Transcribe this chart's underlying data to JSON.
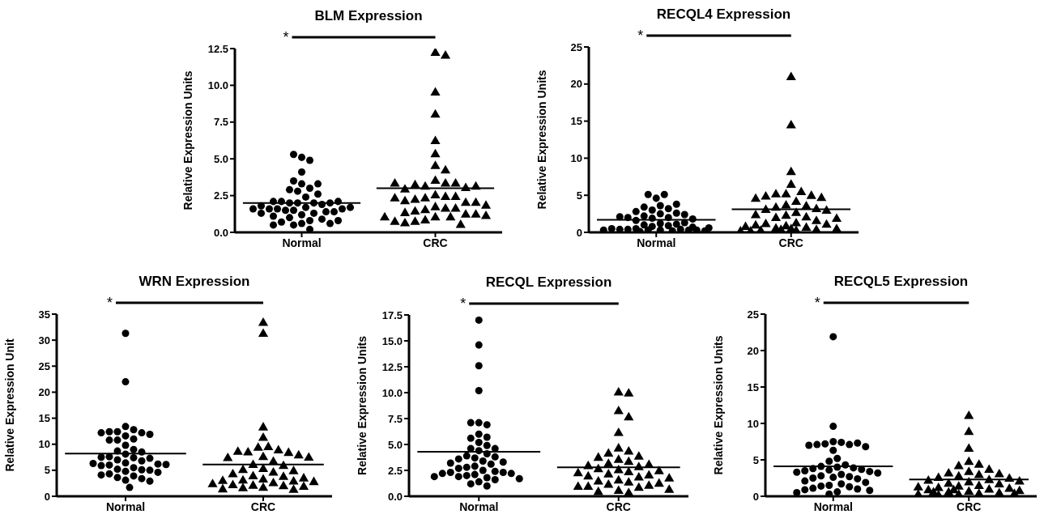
{
  "chart_data": [
    {
      "type": "scatter",
      "title": "BLM Expression",
      "ylabel": "Relative Expression Units",
      "categories": [
        "Normal",
        "CRC"
      ],
      "ylim": [
        0,
        12.5
      ],
      "yticks": [
        {
          "value": 0,
          "label": "0.0"
        },
        2.5,
        {
          "value": 5,
          "label": "5.0"
        },
        7.5,
        {
          "value": 10,
          "label": "10.0"
        },
        12.5
      ],
      "annotations": [
        "*"
      ],
      "series": [
        {
          "type": "scatter",
          "marker": "circle",
          "color": "#000000",
          "x": [
            "Normal",
            "Normal",
            "Normal",
            "Normal",
            "Normal",
            "Normal",
            "Normal",
            "Normal",
            "Normal",
            "Normal",
            "Normal",
            "Normal",
            "Normal",
            "Normal",
            "Normal",
            "Normal",
            "Normal",
            "Normal",
            "Normal",
            "Normal",
            "Normal",
            "Normal",
            "Normal",
            "Normal",
            "Normal",
            "Normal",
            "Normal",
            "Normal",
            "Normal",
            "Normal",
            "Normal",
            "Normal",
            "Normal",
            "Normal",
            "Normal",
            "Normal",
            "Normal",
            "Normal",
            "Normal",
            "Normal",
            "Normal",
            "Normal",
            "Normal",
            "Normal",
            "Normal"
          ],
          "values": [
            5.1,
            4.9,
            5.3,
            4.1,
            3.3,
            3.0,
            2.8,
            3.5,
            2.9,
            3.3,
            2.6,
            2.4,
            2.0,
            2.0,
            2.0,
            1.9,
            2.1,
            2.0,
            2.1,
            2.1,
            1.7,
            1.6,
            1.5,
            1.6,
            1.8,
            1.6,
            1.7,
            1.5,
            1.6,
            1.3,
            1.4,
            1.2,
            1.4,
            1.3,
            1.1,
            1.0,
            0.9,
            0.8,
            0.6,
            0.5,
            0.7,
            0.6,
            0.8,
            0.5,
            0.2
          ]
        },
        {
          "type": "scatter",
          "marker": "triangle",
          "color": "#000000",
          "x": [
            "CRC",
            "CRC",
            "CRC",
            "CRC",
            "CRC",
            "CRC",
            "CRC",
            "CRC",
            "CRC",
            "CRC",
            "CRC",
            "CRC",
            "CRC",
            "CRC",
            "CRC",
            "CRC",
            "CRC",
            "CRC",
            "CRC",
            "CRC",
            "CRC",
            "CRC",
            "CRC",
            "CRC",
            "CRC",
            "CRC",
            "CRC",
            "CRC",
            "CRC",
            "CRC",
            "CRC",
            "CRC",
            "CRC",
            "CRC",
            "CRC",
            "CRC",
            "CRC",
            "CRC",
            "CRC",
            "CRC",
            "CRC",
            "CRC",
            "CRC",
            "CRC"
          ],
          "values": [
            12.2,
            12.0,
            9.5,
            8.0,
            6.2,
            5.3,
            4.5,
            4.2,
            3.5,
            3.3,
            3.1,
            3.3,
            3.2,
            3.0,
            2.9,
            3.1,
            3.3,
            2.5,
            2.4,
            2.3,
            2.4,
            2.2,
            2.0,
            2.1,
            2.0,
            2.3,
            1.7,
            1.6,
            1.8,
            1.5,
            1.6,
            1.4,
            1.2,
            1.3,
            1.2,
            1.0,
            1.0,
            0.8,
            0.7,
            0.5,
            0.6,
            0.7,
            1.1,
            1.0
          ]
        }
      ],
      "ref_lines": [
        {
          "axis": "y",
          "value": 2.0
        },
        {
          "axis": "y",
          "value": 3.0
        }
      ]
    },
    {
      "type": "scatter",
      "title": "RECQL4 Expression",
      "ylabel": "Relative Expression Units",
      "categories": [
        "Normal",
        "CRC"
      ],
      "ylim": [
        0,
        25
      ],
      "yticks": [
        0,
        5,
        10,
        15,
        20,
        25
      ],
      "annotations": [
        "*"
      ],
      "series": [
        {
          "type": "scatter",
          "marker": "circle",
          "color": "#000000",
          "x": [
            "Normal",
            "Normal",
            "Normal",
            "Normal",
            "Normal",
            "Normal",
            "Normal",
            "Normal",
            "Normal",
            "Normal",
            "Normal",
            "Normal",
            "Normal",
            "Normal",
            "Normal",
            "Normal",
            "Normal",
            "Normal",
            "Normal",
            "Normal",
            "Normal",
            "Normal",
            "Normal",
            "Normal",
            "Normal",
            "Normal",
            "Normal",
            "Normal",
            "Normal",
            "Normal",
            "Normal",
            "Normal",
            "Normal",
            "Normal",
            "Normal",
            "Normal",
            "Normal",
            "Normal",
            "Normal",
            "Normal"
          ],
          "values": [
            4.6,
            5.1,
            5.1,
            3.6,
            3.0,
            3.2,
            3.4,
            3.8,
            2.5,
            2.6,
            2.8,
            2.2,
            2.4,
            2.0,
            1.9,
            2.0,
            1.8,
            2.1,
            1.6,
            1.2,
            1.0,
            1.1,
            1.3,
            0.9,
            0.8,
            0.5,
            0.4,
            0.3,
            0.4,
            0.3,
            0.5,
            0.2,
            0.3,
            0.4,
            0.3,
            0.2,
            0.6,
            0.7,
            0.3,
            0.1
          ]
        },
        {
          "type": "scatter",
          "marker": "triangle",
          "color": "#000000",
          "x": [
            "CRC",
            "CRC",
            "CRC",
            "CRC",
            "CRC",
            "CRC",
            "CRC",
            "CRC",
            "CRC",
            "CRC",
            "CRC",
            "CRC",
            "CRC",
            "CRC",
            "CRC",
            "CRC",
            "CRC",
            "CRC",
            "CRC",
            "CRC",
            "CRC",
            "CRC",
            "CRC",
            "CRC",
            "CRC",
            "CRC",
            "CRC",
            "CRC",
            "CRC",
            "CRC",
            "CRC",
            "CRC",
            "CRC",
            "CRC",
            "CRC",
            "CRC",
            "CRC",
            "CRC",
            "CRC",
            "CRC",
            "CRC"
          ],
          "values": [
            20.9,
            14.4,
            8.1,
            6.4,
            5.4,
            5.1,
            5.1,
            4.9,
            4.8,
            4.6,
            4.5,
            4.1,
            3.6,
            3.5,
            3.3,
            3.1,
            3.0,
            2.9,
            2.6,
            2.3,
            2.2,
            2.0,
            1.9,
            1.8,
            1.5,
            1.2,
            1.1,
            1.0,
            0.9,
            0.8,
            0.7,
            0.6,
            0.5,
            0.4,
            0.3,
            0.2,
            0.2,
            0.1,
            0.1,
            0.3,
            0.4
          ]
        }
      ],
      "ref_lines": [
        {
          "axis": "y",
          "value": 1.7
        },
        {
          "axis": "y",
          "value": 3.1
        }
      ]
    },
    {
      "type": "scatter",
      "title": "WRN Expression",
      "ylabel": "Relative Expression Unit",
      "categories": [
        "Normal",
        "CRC"
      ],
      "ylim": [
        0,
        35
      ],
      "yticks": [
        0,
        5,
        10,
        15,
        20,
        25,
        30,
        35
      ],
      "annotations": [
        "*"
      ],
      "series": [
        {
          "type": "scatter",
          "marker": "circle",
          "color": "#000000",
          "x": [
            "Normal",
            "Normal",
            "Normal",
            "Normal",
            "Normal",
            "Normal",
            "Normal",
            "Normal",
            "Normal",
            "Normal",
            "Normal",
            "Normal",
            "Normal",
            "Normal",
            "Normal",
            "Normal",
            "Normal",
            "Normal",
            "Normal",
            "Normal",
            "Normal",
            "Normal",
            "Normal",
            "Normal",
            "Normal",
            "Normal",
            "Normal",
            "Normal",
            "Normal",
            "Normal",
            "Normal",
            "Normal",
            "Normal",
            "Normal",
            "Normal",
            "Normal",
            "Normal",
            "Normal",
            "Normal",
            "Normal",
            "Normal",
            "Normal",
            "Normal",
            "Normal"
          ],
          "values": [
            31.3,
            22.0,
            13.4,
            12.8,
            12.4,
            12.2,
            12.4,
            11.6,
            11.0,
            10.8,
            11.9,
            12.2,
            10.8,
            9.8,
            9.0,
            8.7,
            8.5,
            8.1,
            7.6,
            7.4,
            7.3,
            7.5,
            7.0,
            6.8,
            6.4,
            6.2,
            6.3,
            6.0,
            6.1,
            5.9,
            5.5,
            5.2,
            5.1,
            5.0,
            4.8,
            4.6,
            4.3,
            4.1,
            3.9,
            3.6,
            3.4,
            3.1,
            2.9,
            1.7
          ]
        },
        {
          "type": "scatter",
          "marker": "triangle",
          "color": "#000000",
          "x": [
            "CRC",
            "CRC",
            "CRC",
            "CRC",
            "CRC",
            "CRC",
            "CRC",
            "CRC",
            "CRC",
            "CRC",
            "CRC",
            "CRC",
            "CRC",
            "CRC",
            "CRC",
            "CRC",
            "CRC",
            "CRC",
            "CRC",
            "CRC",
            "CRC",
            "CRC",
            "CRC",
            "CRC",
            "CRC",
            "CRC",
            "CRC",
            "CRC",
            "CRC",
            "CRC",
            "CRC",
            "CRC",
            "CRC",
            "CRC",
            "CRC",
            "CRC",
            "CRC",
            "CRC",
            "CRC",
            "CRC"
          ],
          "values": [
            33.3,
            31.2,
            13.2,
            11.2,
            9.4,
            9.3,
            8.8,
            8.4,
            8.3,
            8.5,
            7.5,
            7.8,
            7.3,
            7.4,
            6.6,
            6.0,
            5.8,
            5.2,
            5.0,
            4.8,
            4.5,
            4.2,
            3.8,
            3.7,
            3.4,
            3.2,
            3.0,
            2.9,
            2.8,
            2.7,
            2.5,
            2.3,
            2.1,
            2.0,
            1.9,
            1.8,
            1.6,
            1.5,
            1.3,
            1.2
          ]
        }
      ],
      "ref_lines": [
        {
          "axis": "y",
          "value": 8.2
        },
        {
          "axis": "y",
          "value": 6.1
        }
      ]
    },
    {
      "type": "scatter",
      "title": "RECQL Expression",
      "ylabel": "Relative Expression Units",
      "categories": [
        "Normal",
        "CRC"
      ],
      "ylim": [
        0,
        17.5
      ],
      "yticks": [
        {
          "value": 0,
          "label": "0.0"
        },
        2.5,
        {
          "value": 5,
          "label": "5.0"
        },
        7.5,
        {
          "value": 10,
          "label": "10.0"
        },
        12.5,
        {
          "value": 15,
          "label": "15.0"
        },
        17.5
      ],
      "annotations": [
        "*"
      ],
      "series": [
        {
          "type": "scatter",
          "marker": "circle",
          "color": "#000000",
          "x": [
            "Normal",
            "Normal",
            "Normal",
            "Normal",
            "Normal",
            "Normal",
            "Normal",
            "Normal",
            "Normal",
            "Normal",
            "Normal",
            "Normal",
            "Normal",
            "Normal",
            "Normal",
            "Normal",
            "Normal",
            "Normal",
            "Normal",
            "Normal",
            "Normal",
            "Normal",
            "Normal",
            "Normal",
            "Normal",
            "Normal",
            "Normal",
            "Normal",
            "Normal",
            "Normal",
            "Normal",
            "Normal",
            "Normal",
            "Normal",
            "Normal",
            "Normal",
            "Normal",
            "Normal",
            "Normal",
            "Normal",
            "Normal",
            "Normal",
            "Normal"
          ],
          "values": [
            17.0,
            14.6,
            12.6,
            10.2,
            7.1,
            6.9,
            7.1,
            6.0,
            5.7,
            5.6,
            5.2,
            4.9,
            4.6,
            4.6,
            4.4,
            4.1,
            3.9,
            3.8,
            3.7,
            3.6,
            3.4,
            3.3,
            3.2,
            3.1,
            2.9,
            2.8,
            2.7,
            2.5,
            2.4,
            2.3,
            2.3,
            2.2,
            2.2,
            2.1,
            2.0,
            1.9,
            1.8,
            1.7,
            1.6,
            1.4,
            1.2,
            1.0,
            1.9
          ]
        },
        {
          "type": "scatter",
          "marker": "triangle",
          "color": "#000000",
          "x": [
            "CRC",
            "CRC",
            "CRC",
            "CRC",
            "CRC",
            "CRC",
            "CRC",
            "CRC",
            "CRC",
            "CRC",
            "CRC",
            "CRC",
            "CRC",
            "CRC",
            "CRC",
            "CRC",
            "CRC",
            "CRC",
            "CRC",
            "CRC",
            "CRC",
            "CRC",
            "CRC",
            "CRC",
            "CRC",
            "CRC",
            "CRC",
            "CRC",
            "CRC",
            "CRC",
            "CRC",
            "CRC",
            "CRC",
            "CRC",
            "CRC",
            "CRC",
            "CRC",
            "CRC",
            "CRC"
          ],
          "values": [
            10.0,
            9.9,
            8.2,
            7.6,
            6.1,
            4.6,
            4.3,
            4.1,
            3.8,
            3.7,
            3.5,
            3.3,
            3.1,
            3.0,
            2.9,
            2.8,
            2.6,
            2.5,
            2.4,
            2.3,
            2.2,
            2.1,
            2.0,
            1.9,
            1.8,
            1.7,
            1.5,
            1.4,
            1.3,
            1.2,
            1.1,
            1.0,
            0.9,
            0.9,
            0.8,
            0.6,
            0.5,
            0.4,
            0.3
          ]
        }
      ],
      "ref_lines": [
        {
          "axis": "y",
          "value": 4.3
        },
        {
          "axis": "y",
          "value": 2.8
        }
      ]
    },
    {
      "type": "scatter",
      "title": "RECQL5 Expression",
      "ylabel": "Relative Expression Units",
      "categories": [
        "Normal",
        "CRC"
      ],
      "ylim": [
        0,
        25
      ],
      "yticks": [
        0,
        5,
        10,
        15,
        20,
        25
      ],
      "annotations": [
        "*"
      ],
      "series": [
        {
          "type": "scatter",
          "marker": "circle",
          "color": "#000000",
          "x": [
            "Normal",
            "Normal",
            "Normal",
            "Normal",
            "Normal",
            "Normal",
            "Normal",
            "Normal",
            "Normal",
            "Normal",
            "Normal",
            "Normal",
            "Normal",
            "Normal",
            "Normal",
            "Normal",
            "Normal",
            "Normal",
            "Normal",
            "Normal",
            "Normal",
            "Normal",
            "Normal",
            "Normal",
            "Normal",
            "Normal",
            "Normal",
            "Normal",
            "Normal",
            "Normal",
            "Normal",
            "Normal",
            "Normal",
            "Normal",
            "Normal",
            "Normal",
            "Normal",
            "Normal",
            "Normal",
            "Normal",
            "Normal",
            "Normal",
            "Normal"
          ],
          "values": [
            21.9,
            9.6,
            7.5,
            7.4,
            7.2,
            7.1,
            7.1,
            7.3,
            7.0,
            6.8,
            6.3,
            5.2,
            4.8,
            4.3,
            4.1,
            4.0,
            3.9,
            3.8,
            3.7,
            3.6,
            3.5,
            3.4,
            3.3,
            3.2,
            3.0,
            2.8,
            2.7,
            2.6,
            2.5,
            2.4,
            2.1,
            1.9,
            1.7,
            1.5,
            1.4,
            1.3,
            1.1,
            1.0,
            0.9,
            0.8,
            0.6,
            0.5,
            0.3
          ]
        },
        {
          "type": "scatter",
          "marker": "triangle",
          "color": "#000000",
          "x": [
            "CRC",
            "CRC",
            "CRC",
            "CRC",
            "CRC",
            "CRC",
            "CRC",
            "CRC",
            "CRC",
            "CRC",
            "CRC",
            "CRC",
            "CRC",
            "CRC",
            "CRC",
            "CRC",
            "CRC",
            "CRC",
            "CRC",
            "CRC",
            "CRC",
            "CRC",
            "CRC",
            "CRC",
            "CRC",
            "CRC",
            "CRC",
            "CRC",
            "CRC",
            "CRC",
            "CRC",
            "CRC",
            "CRC",
            "CRC",
            "CRC",
            "CRC",
            "CRC",
            "CRC"
          ],
          "values": [
            11.0,
            8.8,
            6.5,
            4.7,
            4.3,
            4.1,
            3.6,
            3.3,
            3.1,
            3.0,
            2.9,
            2.7,
            2.5,
            2.4,
            2.2,
            2.1,
            2.0,
            1.9,
            1.7,
            1.6,
            1.4,
            1.3,
            1.2,
            1.1,
            1.0,
            0.9,
            0.8,
            0.7,
            0.6,
            0.5,
            0.4,
            0.3,
            0.2,
            0.2,
            0.1,
            0.3,
            0.5,
            0.8
          ]
        }
      ],
      "ref_lines": [
        {
          "axis": "y",
          "value": 4.1
        },
        {
          "axis": "y",
          "value": 2.3
        }
      ]
    }
  ]
}
